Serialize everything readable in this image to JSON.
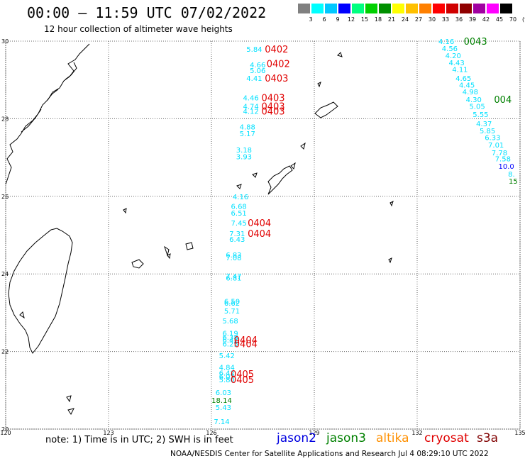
{
  "header": {
    "title": "00:00 – 11:59 UTC 07/02/2022",
    "subtitle": "12 hour collection of altimeter wave heights"
  },
  "color_scale": {
    "labels": [
      "3",
      "6",
      "9",
      "12",
      "15",
      "18",
      "21",
      "24",
      "27",
      "30",
      "33",
      "36",
      "39",
      "42",
      "45",
      "70",
      "(ft)"
    ],
    "colors": [
      "#808080",
      "#00ffff",
      "#00c8ff",
      "#0000ff",
      "#00ff80",
      "#00d000",
      "#009000",
      "#ffff00",
      "#ffc000",
      "#ff8000",
      "#ff0000",
      "#d00000",
      "#900000",
      "#a000a0",
      "#ff00ff",
      "#000000"
    ]
  },
  "axes": {
    "lat_labels": [
      "30",
      "28",
      "26",
      "24",
      "22",
      "20"
    ],
    "lon_labels": [
      "120",
      "123",
      "126",
      "129",
      "132",
      "135"
    ]
  },
  "observations": [
    {
      "v": "5.84",
      "c": "#00e0ff",
      "lon": 127.25,
      "lat": 29.8
    },
    {
      "v": "4.66",
      "c": "#00e0ff",
      "lon": 127.35,
      "lat": 29.4
    },
    {
      "v": "5.06",
      "c": "#00e0ff",
      "lon": 127.35,
      "lat": 29.25
    },
    {
      "v": "4.41",
      "c": "#00e0ff",
      "lon": 127.25,
      "lat": 29.05
    },
    {
      "v": "4.46",
      "c": "#00e0ff",
      "lon": 127.15,
      "lat": 28.55
    },
    {
      "v": "4.74",
      "c": "#00e0ff",
      "lon": 127.15,
      "lat": 28.33
    },
    {
      "v": "4.12",
      "c": "#00e0ff",
      "lon": 127.15,
      "lat": 28.2
    },
    {
      "v": "4.88",
      "c": "#00e0ff",
      "lon": 127.05,
      "lat": 27.8
    },
    {
      "v": "5.17",
      "c": "#00e0ff",
      "lon": 127.05,
      "lat": 27.62
    },
    {
      "v": "3.18",
      "c": "#00e0ff",
      "lon": 126.95,
      "lat": 27.2
    },
    {
      "v": "3.93",
      "c": "#00e0ff",
      "lon": 126.95,
      "lat": 27.03
    },
    {
      "v": "4.16",
      "c": "#00e0ff",
      "lon": 126.85,
      "lat": 26.0
    },
    {
      "v": "6.68",
      "c": "#00e0ff",
      "lon": 126.8,
      "lat": 25.75
    },
    {
      "v": "6.51",
      "c": "#00e0ff",
      "lon": 126.8,
      "lat": 25.58
    },
    {
      "v": "7.45",
      "c": "#00e0ff",
      "lon": 126.8,
      "lat": 25.32
    },
    {
      "v": "7.31",
      "c": "#00e0ff",
      "lon": 126.75,
      "lat": 25.05
    },
    {
      "v": "6.43",
      "c": "#00e0ff",
      "lon": 126.75,
      "lat": 24.9
    },
    {
      "v": "6.83",
      "c": "#00e0ff",
      "lon": 126.65,
      "lat": 24.5
    },
    {
      "v": "7.08",
      "c": "#00e0ff",
      "lon": 126.65,
      "lat": 24.42
    },
    {
      "v": "7.47",
      "c": "#00e0ff",
      "lon": 126.65,
      "lat": 23.95
    },
    {
      "v": "6.81",
      "c": "#00e0ff",
      "lon": 126.65,
      "lat": 23.9
    },
    {
      "v": "6.50",
      "c": "#00e0ff",
      "lon": 126.6,
      "lat": 23.3
    },
    {
      "v": "6.62",
      "c": "#00e0ff",
      "lon": 126.6,
      "lat": 23.25
    },
    {
      "v": "5.71",
      "c": "#00e0ff",
      "lon": 126.6,
      "lat": 23.05
    },
    {
      "v": "5.68",
      "c": "#00e0ff",
      "lon": 126.55,
      "lat": 22.8
    },
    {
      "v": "6.19",
      "c": "#00e0ff",
      "lon": 126.55,
      "lat": 22.48
    },
    {
      "v": "6.38",
      "c": "#00e0ff",
      "lon": 126.55,
      "lat": 22.38
    },
    {
      "v": "6.42",
      "c": "#00e0ff",
      "lon": 126.55,
      "lat": 22.3
    },
    {
      "v": "6.25",
      "c": "#00e0ff",
      "lon": 126.55,
      "lat": 22.2
    },
    {
      "v": "5.42",
      "c": "#00e0ff",
      "lon": 126.45,
      "lat": 21.9
    },
    {
      "v": "4.84",
      "c": "#00e0ff",
      "lon": 126.45,
      "lat": 21.6
    },
    {
      "v": "6.42",
      "c": "#00e0ff",
      "lon": 126.45,
      "lat": 21.45
    },
    {
      "v": "6.07",
      "c": "#00e0ff",
      "lon": 126.45,
      "lat": 21.36
    },
    {
      "v": "5.80",
      "c": "#00e0ff",
      "lon": 126.45,
      "lat": 21.28
    },
    {
      "v": "6.03",
      "c": "#00e0ff",
      "lon": 126.35,
      "lat": 20.95
    },
    {
      "v": "18.14",
      "c": "#008000",
      "lon": 126.3,
      "lat": 20.75
    },
    {
      "v": "5.43",
      "c": "#00e0ff",
      "lon": 126.35,
      "lat": 20.57
    },
    {
      "v": "7.14",
      "c": "#00e0ff",
      "lon": 126.3,
      "lat": 20.2
    },
    {
      "v": "4.16",
      "c": "#00e0ff",
      "lon": 132.85,
      "lat": 30.0
    },
    {
      "v": "4.56",
      "c": "#00e0ff",
      "lon": 132.95,
      "lat": 29.82
    },
    {
      "v": "4.20",
      "c": "#00e0ff",
      "lon": 133.05,
      "lat": 29.63
    },
    {
      "v": "4.43",
      "c": "#00e0ff",
      "lon": 133.15,
      "lat": 29.45
    },
    {
      "v": "4.11",
      "c": "#00e0ff",
      "lon": 133.25,
      "lat": 29.28
    },
    {
      "v": "4.65",
      "c": "#00e0ff",
      "lon": 133.35,
      "lat": 29.05
    },
    {
      "v": "4.45",
      "c": "#00e0ff",
      "lon": 133.45,
      "lat": 28.88
    },
    {
      "v": "4.98",
      "c": "#00e0ff",
      "lon": 133.55,
      "lat": 28.7
    },
    {
      "v": "4.30",
      "c": "#00e0ff",
      "lon": 133.65,
      "lat": 28.5
    },
    {
      "v": "5.05",
      "c": "#00e0ff",
      "lon": 133.75,
      "lat": 28.33
    },
    {
      "v": "5.55",
      "c": "#00e0ff",
      "lon": 133.85,
      "lat": 28.12
    },
    {
      "v": "4.37",
      "c": "#00e0ff",
      "lon": 133.95,
      "lat": 27.88
    },
    {
      "v": "5.85",
      "c": "#00e0ff",
      "lon": 134.05,
      "lat": 27.7
    },
    {
      "v": "6.33",
      "c": "#00e0ff",
      "lon": 134.2,
      "lat": 27.52
    },
    {
      "v": "7.01",
      "c": "#00e0ff",
      "lon": 134.3,
      "lat": 27.33
    },
    {
      "v": "7.78",
      "c": "#00e0ff",
      "lon": 134.4,
      "lat": 27.13
    },
    {
      "v": "7.58",
      "c": "#00e0ff",
      "lon": 134.5,
      "lat": 26.97
    },
    {
      "v": "10.0",
      "c": "#0000ff",
      "lon": 134.6,
      "lat": 26.78
    },
    {
      "v": "8.",
      "c": "#00e0ff",
      "lon": 134.75,
      "lat": 26.58
    },
    {
      "v": "15",
      "c": "#008000",
      "lon": 134.8,
      "lat": 26.4
    }
  ],
  "pass_labels": [
    {
      "t": "0402",
      "c": "#e00000",
      "lon": 127.9,
      "lat": 29.8
    },
    {
      "t": "0402",
      "c": "#e00000",
      "lon": 127.95,
      "lat": 29.42
    },
    {
      "t": "0403",
      "c": "#e00000",
      "lon": 127.9,
      "lat": 29.05
    },
    {
      "t": "0403",
      "c": "#e00000",
      "lon": 127.8,
      "lat": 28.55
    },
    {
      "t": "0403",
      "c": "#e00000",
      "lon": 127.8,
      "lat": 28.33
    },
    {
      "t": "0403",
      "c": "#e00000",
      "lon": 127.8,
      "lat": 28.2
    },
    {
      "t": "0404",
      "c": "#e00000",
      "lon": 127.4,
      "lat": 25.32
    },
    {
      "t": "0404",
      "c": "#e00000",
      "lon": 127.4,
      "lat": 25.05
    },
    {
      "t": "0404",
      "c": "#e00000",
      "lon": 127.0,
      "lat": 22.3
    },
    {
      "t": "0404",
      "c": "#e00000",
      "lon": 127.0,
      "lat": 22.2
    },
    {
      "t": "0405",
      "c": "#e00000",
      "lon": 126.9,
      "lat": 21.43
    },
    {
      "t": "0405",
      "c": "#e00000",
      "lon": 126.9,
      "lat": 21.28
    },
    {
      "t": "0043",
      "c": "#008000",
      "lon": 133.7,
      "lat": 30.0
    },
    {
      "t": "004",
      "c": "#008000",
      "lon": 134.5,
      "lat": 28.5
    }
  ],
  "footer": {
    "note": "note:  1) Time is in UTC;  2) SWH is in feet",
    "legend": [
      {
        "name": "jason2",
        "color": "#0000e0"
      },
      {
        "name": "jason3",
        "color": "#008000"
      },
      {
        "name": "altika",
        "color": "#ff9000"
      },
      {
        "name": "cryosat",
        "color": "#e00000"
      },
      {
        "name": "s3a",
        "color": "#800000"
      }
    ],
    "credit": "NOAA/NESDIS Center for Satellite Applications and Research    Jul  4 08:29:10 UTC 2022"
  }
}
